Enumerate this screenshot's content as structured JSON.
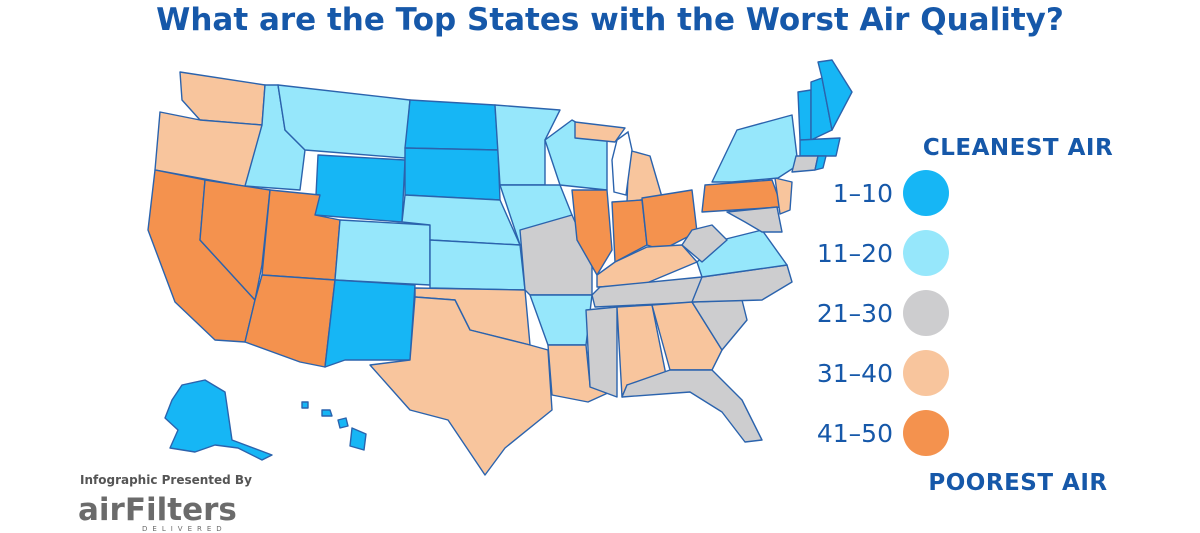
{
  "title": "What are the Top States with the Worst Air Quality?",
  "legend": {
    "top_label": "CLEANEST AIR",
    "bottom_label": "POOREST AIR",
    "items": [
      {
        "label": "1–10",
        "color": "#16b6f5"
      },
      {
        "label": "11–20",
        "color": "#96e7fb"
      },
      {
        "label": "21–30",
        "color": "#cdcdcf"
      },
      {
        "label": "31–40",
        "color": "#f8c59d"
      },
      {
        "label": "41–50",
        "color": "#f4924e"
      }
    ]
  },
  "credit": {
    "presented_by": "Infographic Presented By",
    "brand": "airFilters",
    "tagline": "DELIVERED"
  }
}
